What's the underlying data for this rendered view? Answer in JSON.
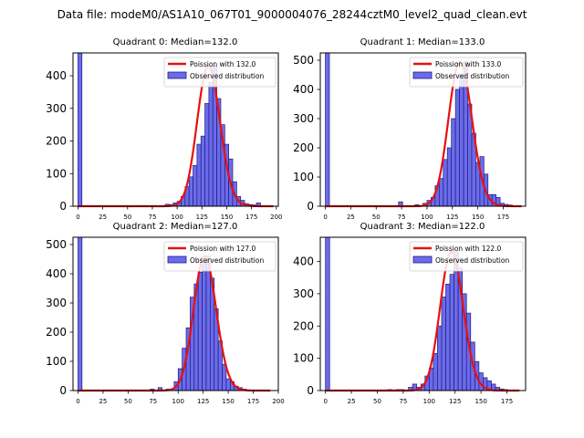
{
  "suptitle": "Data file: modeM0/AS1A10_067T01_9000004076_28244cztM0_level2_quad_clean.evt",
  "legend_labels": {
    "observed": "Observed distribution",
    "poisson_prefix": "Poission with "
  },
  "colors": {
    "hist_fill": "#6b6bea",
    "hist_edge": "#1c1c80",
    "poisson_line": "#e8100d",
    "legend_frame": "#cccccc"
  },
  "chart_data": [
    {
      "type": "bar",
      "title": "Quadrant 0: Median=132.0",
      "poisson_mean": 132.0,
      "poisson_label": "Poission with 132.0",
      "bin_width": 4,
      "zero_bar": {
        "x": 0,
        "height": 470
      },
      "xlim": [
        -5,
        202
      ],
      "ylim": [
        0,
        470
      ],
      "xticks": [
        0,
        25,
        50,
        75,
        100,
        125,
        150,
        175,
        200
      ],
      "yticks": [
        0,
        100,
        200,
        300,
        400
      ],
      "bins": [
        [
          64,
          2
        ],
        [
          72,
          2
        ],
        [
          84,
          2
        ],
        [
          88,
          6
        ],
        [
          92,
          5
        ],
        [
          96,
          10
        ],
        [
          100,
          15
        ],
        [
          104,
          30
        ],
        [
          108,
          60
        ],
        [
          112,
          90
        ],
        [
          116,
          125
        ],
        [
          120,
          190
        ],
        [
          124,
          215
        ],
        [
          128,
          315
        ],
        [
          132,
          380
        ],
        [
          136,
          430
        ],
        [
          140,
          330
        ],
        [
          144,
          250
        ],
        [
          148,
          190
        ],
        [
          152,
          145
        ],
        [
          156,
          75
        ],
        [
          160,
          30
        ],
        [
          164,
          18
        ],
        [
          168,
          8
        ],
        [
          172,
          5
        ],
        [
          176,
          4
        ],
        [
          180,
          10
        ]
      ]
    },
    {
      "type": "bar",
      "title": "Quadrant 1: Median=133.0",
      "poisson_mean": 133.0,
      "poisson_label": "Poission with 133.0",
      "bin_width": 4,
      "zero_bar": {
        "x": 0,
        "height": 525
      },
      "xlim": [
        -5,
        197
      ],
      "ylim": [
        0,
        525
      ],
      "xticks": [
        0,
        25,
        50,
        75,
        100,
        125,
        150,
        175
      ],
      "yticks": [
        0,
        100,
        200,
        300,
        400,
        500
      ],
      "bins": [
        [
          72,
          15
        ],
        [
          88,
          5
        ],
        [
          96,
          10
        ],
        [
          100,
          20
        ],
        [
          104,
          30
        ],
        [
          108,
          70
        ],
        [
          112,
          95
        ],
        [
          116,
          160
        ],
        [
          120,
          200
        ],
        [
          124,
          300
        ],
        [
          128,
          400
        ],
        [
          132,
          450
        ],
        [
          136,
          495
        ],
        [
          140,
          350
        ],
        [
          144,
          250
        ],
        [
          148,
          150
        ],
        [
          152,
          170
        ],
        [
          156,
          110
        ],
        [
          160,
          40
        ],
        [
          164,
          40
        ],
        [
          168,
          30
        ],
        [
          172,
          10
        ],
        [
          176,
          6
        ],
        [
          180,
          4
        ]
      ]
    },
    {
      "type": "bar",
      "title": "Quadrant 2: Median=127.0",
      "poisson_mean": 127.0,
      "poisson_label": "Poission with 127.0",
      "bin_width": 4,
      "zero_bar": {
        "x": 0,
        "height": 525
      },
      "xlim": [
        -5,
        200
      ],
      "ylim": [
        0,
        525
      ],
      "xticks": [
        0,
        25,
        50,
        75,
        100,
        125,
        150,
        175,
        200
      ],
      "yticks": [
        0,
        100,
        200,
        300,
        400,
        500
      ],
      "bins": [
        [
          72,
          5
        ],
        [
          80,
          10
        ],
        [
          88,
          5
        ],
        [
          96,
          30
        ],
        [
          100,
          75
        ],
        [
          104,
          145
        ],
        [
          108,
          215
        ],
        [
          112,
          320
        ],
        [
          116,
          365
        ],
        [
          120,
          405
        ],
        [
          124,
          440
        ],
        [
          128,
          460
        ],
        [
          132,
          385
        ],
        [
          136,
          280
        ],
        [
          140,
          170
        ],
        [
          144,
          90
        ],
        [
          148,
          40
        ],
        [
          152,
          30
        ],
        [
          156,
          15
        ],
        [
          160,
          10
        ],
        [
          164,
          5
        ]
      ]
    },
    {
      "type": "bar",
      "title": "Quadrant 3: Median=122.0",
      "poisson_mean": 122.0,
      "poisson_label": "Poission with 122.0",
      "bin_width": 4,
      "zero_bar": {
        "x": 0,
        "height": 475
      },
      "xlim": [
        -5,
        193
      ],
      "ylim": [
        0,
        475
      ],
      "xticks": [
        0,
        25,
        50,
        75,
        100,
        125,
        150,
        175
      ],
      "yticks": [
        0,
        100,
        200,
        300,
        400
      ],
      "bins": [
        [
          60,
          3
        ],
        [
          68,
          3
        ],
        [
          72,
          3
        ],
        [
          80,
          10
        ],
        [
          84,
          20
        ],
        [
          88,
          10
        ],
        [
          92,
          20
        ],
        [
          96,
          45
        ],
        [
          100,
          70
        ],
        [
          104,
          115
        ],
        [
          108,
          200
        ],
        [
          112,
          290
        ],
        [
          116,
          330
        ],
        [
          120,
          360
        ],
        [
          124,
          430
        ],
        [
          128,
          380
        ],
        [
          132,
          300
        ],
        [
          136,
          240
        ],
        [
          140,
          150
        ],
        [
          144,
          90
        ],
        [
          148,
          55
        ],
        [
          152,
          40
        ],
        [
          156,
          30
        ],
        [
          160,
          20
        ],
        [
          164,
          10
        ],
        [
          168,
          5
        ],
        [
          172,
          3
        ]
      ]
    }
  ]
}
